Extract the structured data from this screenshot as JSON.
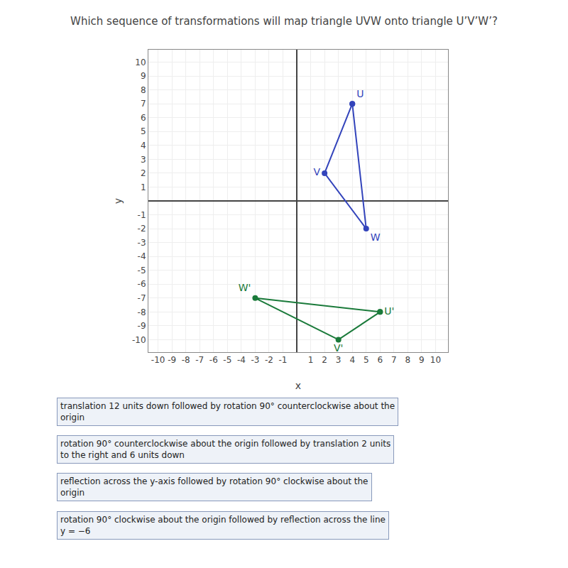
{
  "chart_data": {
    "type": "line",
    "title": "Which sequence of transformations will map triangle UVW onto triangle U’V’W’?",
    "xlabel": "x",
    "ylabel": "y",
    "series": [
      {
        "color": "#3344bb",
        "marker": "circle",
        "x": [
          4,
          2,
          5
        ],
        "y": [
          7,
          2,
          -2
        ],
        "point_labels": [
          "U",
          "V",
          "W"
        ]
      },
      {
        "color": "#1a7a3a",
        "marker": "circle",
        "x": [
          6,
          3,
          -3
        ],
        "y": [
          -8,
          -10,
          -7
        ],
        "point_labels": [
          "U'",
          "V'",
          "W'"
        ]
      }
    ],
    "xlim": [
      -10.7,
      10.9
    ],
    "ylim": [
      -10.9,
      10.9
    ],
    "xticks": [
      -10,
      -9,
      -8,
      -7,
      -6,
      -5,
      -4,
      -3,
      -2,
      -1,
      1,
      2,
      3,
      4,
      5,
      6,
      7,
      8,
      9,
      10
    ],
    "yticks": [
      -10,
      -9,
      -8,
      -7,
      -6,
      -5,
      -4,
      -3,
      -2,
      -1,
      1,
      2,
      3,
      4,
      5,
      6,
      7,
      8,
      9,
      10
    ],
    "grid": true,
    "annotations": [
      "translation 12 units down followed by rotation 90° counterclockwise about the\norigin",
      "rotation 90° counterclockwise about the origin followed by translation 2 units\nto the right and 6 units down",
      "reflection across the y-axis followed by rotation 90° clockwise about the\norigin",
      "rotation 90° clockwise about the origin followed by reflection across the line\ny = −6"
    ]
  }
}
